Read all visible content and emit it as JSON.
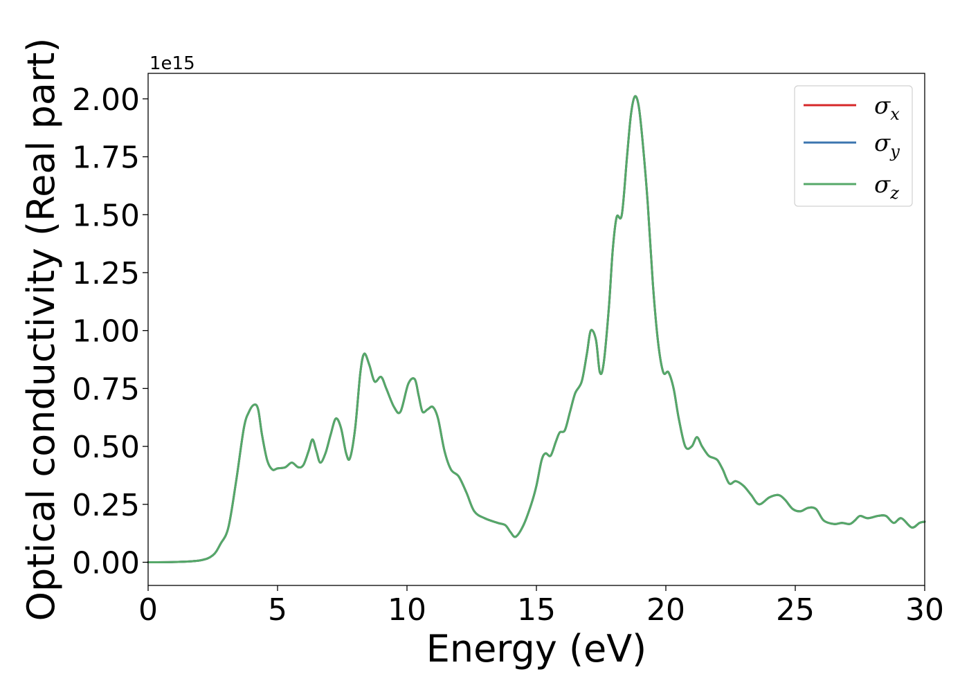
{
  "chart_data": {
    "type": "line",
    "xlabel": "Energy (eV)",
    "ylabel": "Optical conductivity (Real part)",
    "y_offset_text": "1e15",
    "xlim": [
      0,
      30
    ],
    "ylim": [
      -0.1,
      2.11
    ],
    "x_ticks": [
      0,
      5,
      10,
      15,
      20,
      25,
      30
    ],
    "x_tick_labels": [
      "0",
      "5",
      "10",
      "15",
      "20",
      "25",
      "30"
    ],
    "y_ticks": [
      0.0,
      0.25,
      0.5,
      0.75,
      1.0,
      1.25,
      1.5,
      1.75,
      2.0
    ],
    "y_tick_labels": [
      "0.00",
      "0.25",
      "0.50",
      "0.75",
      "1.00",
      "1.25",
      "1.50",
      "1.75",
      "2.00"
    ],
    "grid": false,
    "legend_position": "top-right",
    "series": [
      {
        "name": "σx",
        "color": "#d62728",
        "values_ref": "shared"
      },
      {
        "name": "σy",
        "color": "#3b75af",
        "values_ref": "shared"
      },
      {
        "name": "σz",
        "color": "#55a868",
        "values_ref": "shared"
      }
    ],
    "legend": [
      {
        "symbol": "σ",
        "sub": "x",
        "color": "#d62728"
      },
      {
        "symbol": "σ",
        "sub": "y",
        "color": "#3b75af"
      },
      {
        "symbol": "σ",
        "sub": "z",
        "color": "#55a868"
      }
    ],
    "x": [
      0,
      1.0,
      2.0,
      2.5,
      2.8,
      3.1,
      3.4,
      3.7,
      3.9,
      4.1,
      4.25,
      4.4,
      4.6,
      4.8,
      5.0,
      5.3,
      5.55,
      5.8,
      6.0,
      6.2,
      6.35,
      6.5,
      6.65,
      6.85,
      7.05,
      7.25,
      7.45,
      7.65,
      7.8,
      8.0,
      8.2,
      8.35,
      8.55,
      8.75,
      9.0,
      9.2,
      9.5,
      9.75,
      10.05,
      10.3,
      10.45,
      10.6,
      10.8,
      11.0,
      11.2,
      11.45,
      11.7,
      12.0,
      12.3,
      12.6,
      13.0,
      13.5,
      13.8,
      14.0,
      14.2,
      14.5,
      14.8,
      15.0,
      15.2,
      15.35,
      15.55,
      15.75,
      15.9,
      16.1,
      16.3,
      16.5,
      16.75,
      16.95,
      17.1,
      17.3,
      17.45,
      17.6,
      17.8,
      17.95,
      18.1,
      18.3,
      18.5,
      18.65,
      18.8,
      18.95,
      19.1,
      19.3,
      19.5,
      19.7,
      19.9,
      20.1,
      20.3,
      20.5,
      20.75,
      21.0,
      21.2,
      21.4,
      21.65,
      21.85,
      22.0,
      22.2,
      22.45,
      22.7,
      23.0,
      23.3,
      23.6,
      24.0,
      24.35,
      24.6,
      24.9,
      25.2,
      25.5,
      25.8,
      26.1,
      26.5,
      26.8,
      27.1,
      27.3,
      27.5,
      27.8,
      28.2,
      28.5,
      28.8,
      29.1,
      29.5,
      29.8,
      30.0
    ],
    "y": [
      0.0,
      0.001,
      0.008,
      0.03,
      0.08,
      0.15,
      0.35,
      0.58,
      0.65,
      0.68,
      0.66,
      0.55,
      0.44,
      0.4,
      0.405,
      0.41,
      0.43,
      0.41,
      0.42,
      0.48,
      0.53,
      0.48,
      0.43,
      0.47,
      0.55,
      0.62,
      0.58,
      0.47,
      0.45,
      0.58,
      0.82,
      0.9,
      0.85,
      0.78,
      0.8,
      0.75,
      0.67,
      0.65,
      0.77,
      0.79,
      0.72,
      0.65,
      0.66,
      0.67,
      0.62,
      0.48,
      0.4,
      0.37,
      0.3,
      0.22,
      0.19,
      0.17,
      0.16,
      0.13,
      0.11,
      0.16,
      0.25,
      0.33,
      0.44,
      0.47,
      0.46,
      0.52,
      0.56,
      0.57,
      0.65,
      0.73,
      0.78,
      0.9,
      1.0,
      0.96,
      0.82,
      0.86,
      1.1,
      1.35,
      1.49,
      1.5,
      1.75,
      1.93,
      2.01,
      1.97,
      1.82,
      1.55,
      1.2,
      0.95,
      0.82,
      0.82,
      0.75,
      0.62,
      0.5,
      0.5,
      0.54,
      0.5,
      0.46,
      0.45,
      0.44,
      0.4,
      0.34,
      0.35,
      0.33,
      0.29,
      0.25,
      0.28,
      0.29,
      0.27,
      0.23,
      0.22,
      0.235,
      0.23,
      0.18,
      0.165,
      0.17,
      0.165,
      0.18,
      0.2,
      0.19,
      0.2,
      0.2,
      0.17,
      0.19,
      0.15,
      0.17,
      0.175
    ]
  }
}
